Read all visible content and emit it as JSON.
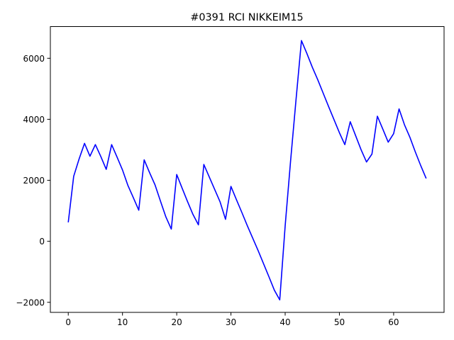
{
  "chart_data": {
    "type": "line",
    "title": "#0391 RCI NIKKEIM15",
    "xlabel": "",
    "ylabel": "",
    "xlim": [
      -3.3,
      69.3
    ],
    "ylim": [
      -2330,
      7040
    ],
    "x_ticks": [
      0,
      10,
      20,
      30,
      40,
      50,
      60
    ],
    "y_ticks": [
      -2000,
      0,
      2000,
      4000,
      6000
    ],
    "grid": false,
    "legend": "none",
    "series": [
      {
        "color": "#0000ff",
        "x": [
          0,
          1,
          2,
          3,
          4,
          5,
          6,
          7,
          8,
          9,
          10,
          11,
          12,
          13,
          14,
          15,
          16,
          17,
          18,
          19,
          20,
          21,
          22,
          23,
          24,
          25,
          26,
          27,
          28,
          29,
          30,
          31,
          32,
          33,
          34,
          35,
          36,
          37,
          38,
          39,
          40,
          41,
          42,
          43,
          44,
          45,
          46,
          47,
          48,
          49,
          50,
          51,
          52,
          53,
          54,
          55,
          56,
          57,
          58,
          59,
          60,
          61,
          62,
          63,
          64,
          65,
          66
        ],
        "y": [
          620,
          2130,
          2700,
          3210,
          2790,
          3170,
          2780,
          2360,
          3170,
          2760,
          2340,
          1830,
          1430,
          1020,
          2670,
          2250,
          1850,
          1320,
          800,
          400,
          2190,
          1740,
          1300,
          880,
          540,
          2520,
          2110,
          1700,
          1290,
          720,
          1800,
          1370,
          950,
          520,
          110,
          -300,
          -730,
          -1160,
          -1600,
          -1920,
          510,
          2640,
          4640,
          6580,
          6160,
          5710,
          5300,
          4860,
          4420,
          3990,
          3560,
          3170,
          3920,
          3460,
          3000,
          2600,
          2860,
          4100,
          3680,
          3250,
          3530,
          4340,
          3820,
          3410,
          2930,
          2480,
          2060
        ]
      }
    ]
  }
}
